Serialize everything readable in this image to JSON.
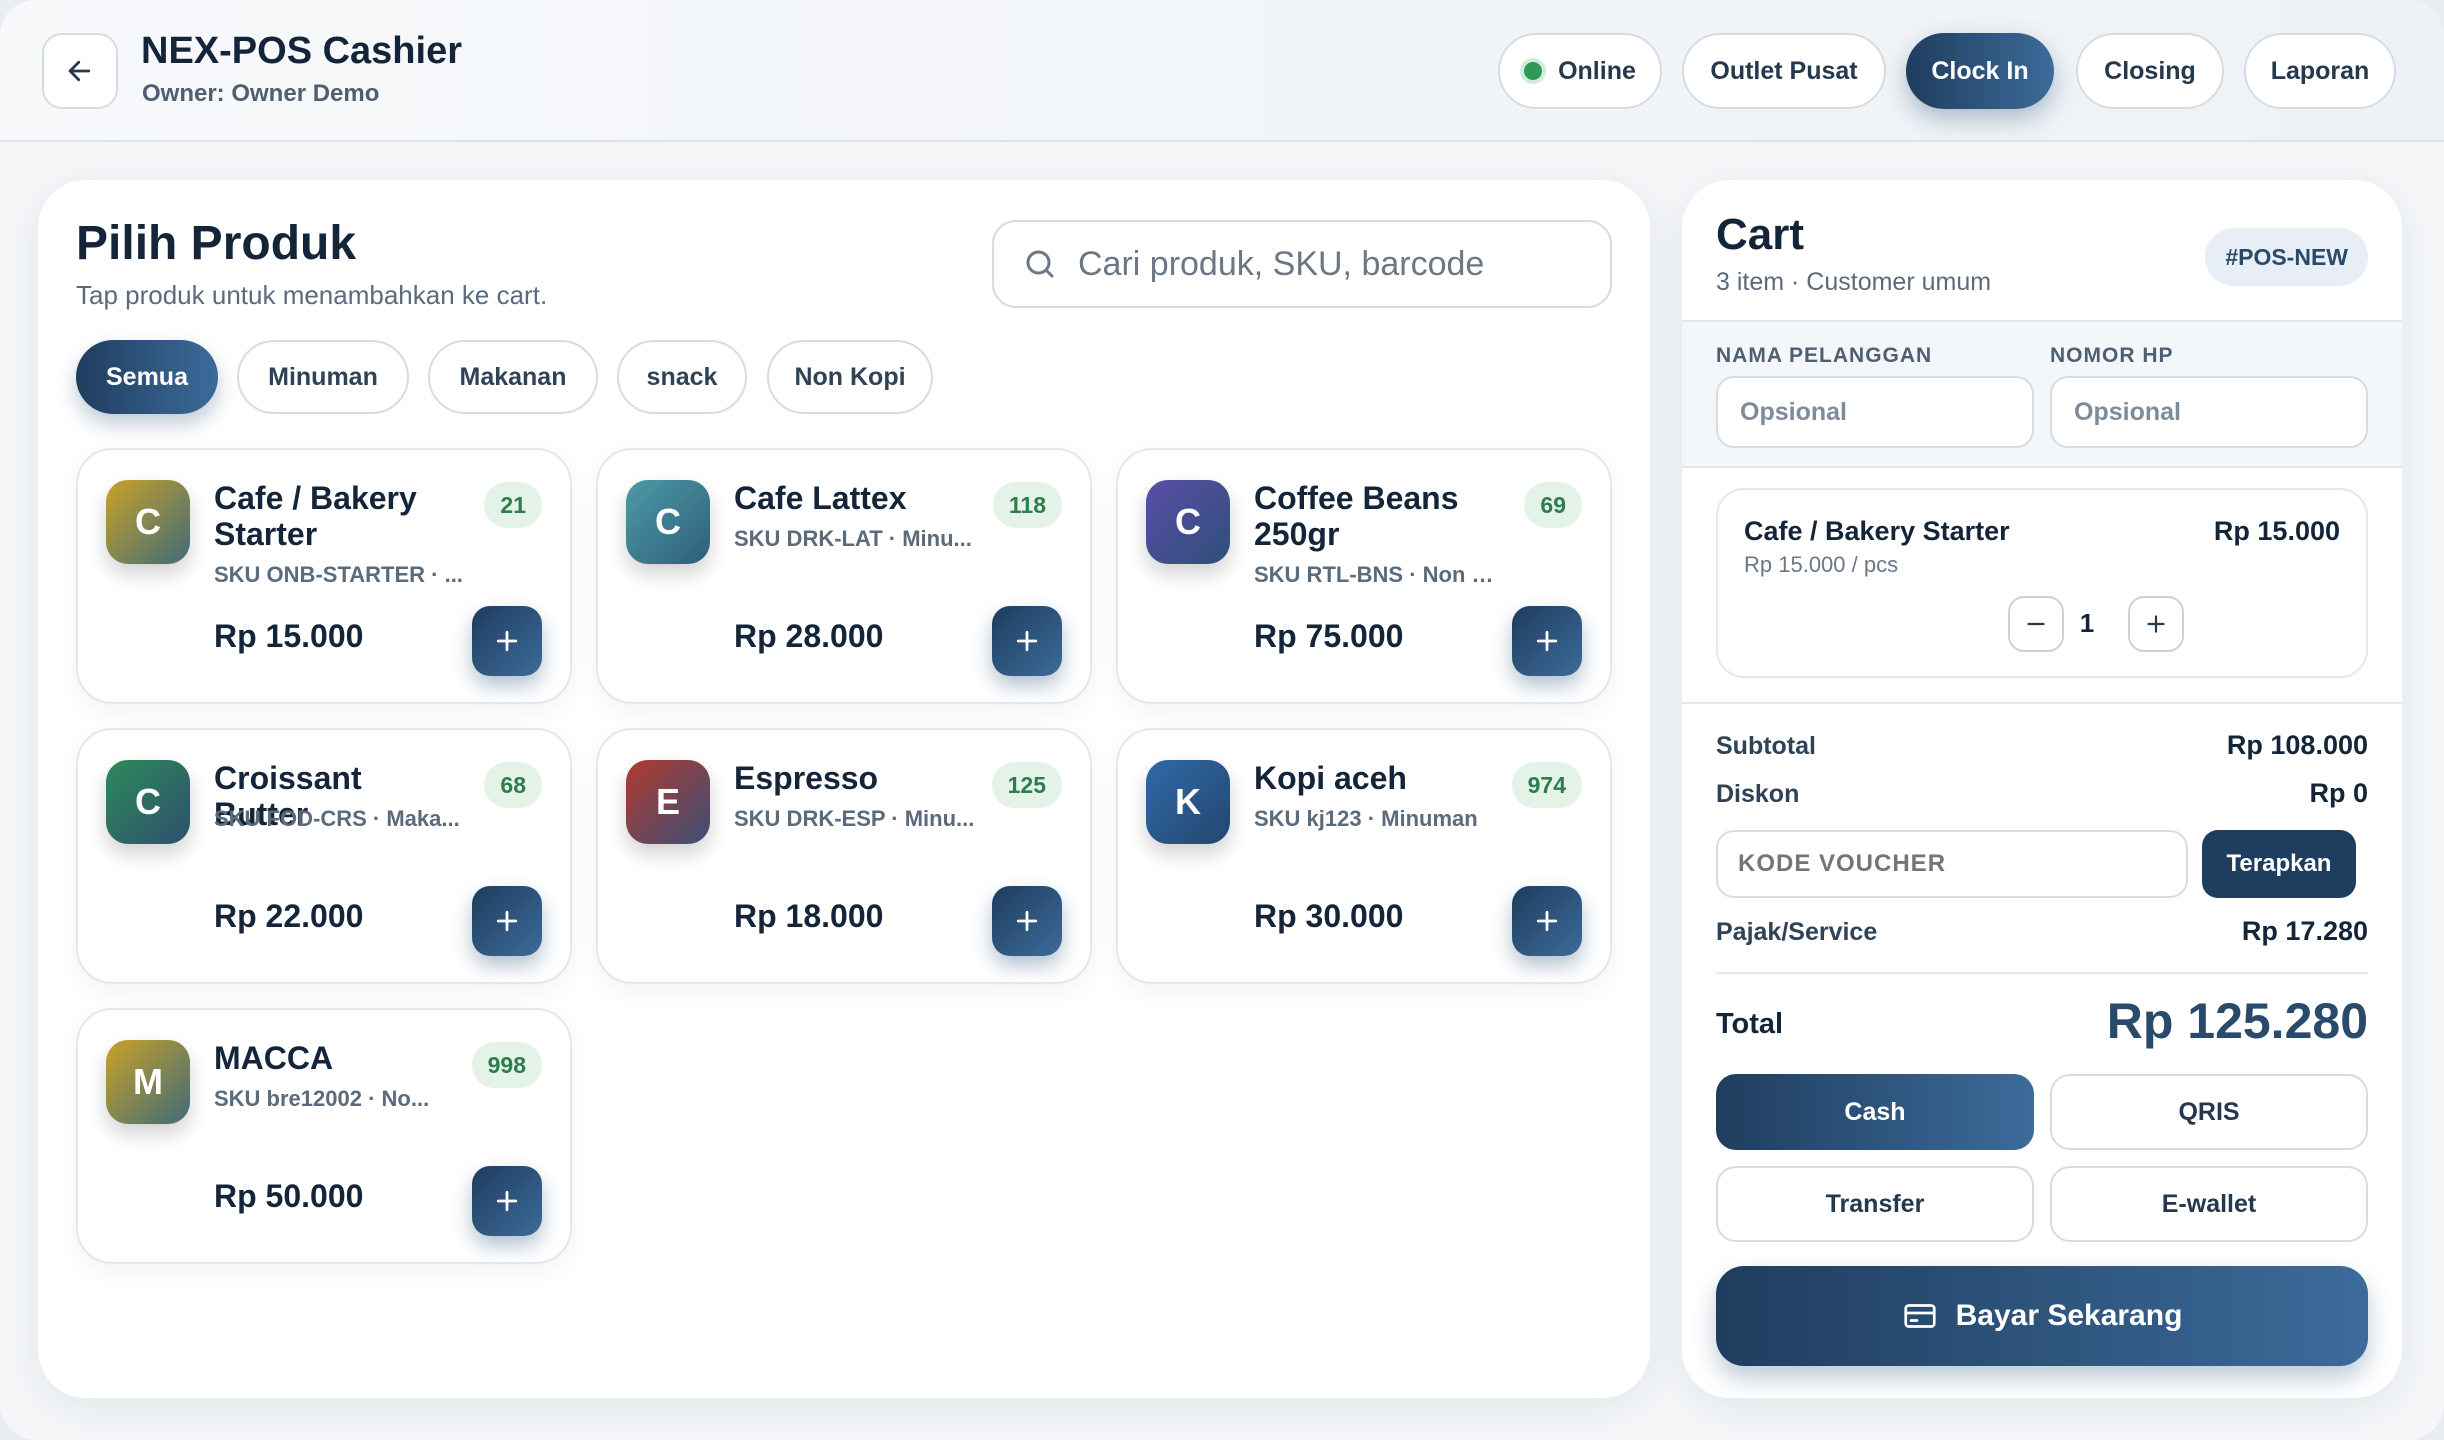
{
  "header": {
    "title": "NEX-POS Cashier",
    "owner": "Owner: Owner Demo",
    "status": "Online",
    "outlet": "Outlet Pusat",
    "clock_in": "Clock In",
    "closing": "Closing",
    "report": "Laporan"
  },
  "products_panel": {
    "title": "Pilih Produk",
    "subtitle": "Tap produk untuk menambahkan ke cart.",
    "search_placeholder": "Cari produk, SKU, barcode",
    "categories": [
      "Semua",
      "Minuman",
      "Makanan",
      "snack",
      "Non Kopi"
    ],
    "active_category": "Semua",
    "products": [
      {
        "initial": "C",
        "name": "Cafe / Bakery Starter",
        "sku": "SKU ONB-STARTER · ...",
        "stock": "21",
        "price": "Rp 15.000",
        "color_from": "#c9a227",
        "color_to": "#3f6a7a"
      },
      {
        "initial": "C",
        "name": "Cafe Lattex",
        "sku": "SKU DRK-LAT · Minu...",
        "stock": "118",
        "price": "Rp 28.000",
        "color_from": "#4e9aa8",
        "color_to": "#2d5f78"
      },
      {
        "initial": "C",
        "name": "Coffee Beans 250gr",
        "sku": "SKU RTL-BNS · Non K...",
        "stock": "69",
        "price": "Rp 75.000",
        "color_from": "#5a4ea8",
        "color_to": "#2e4f78"
      },
      {
        "initial": "C",
        "name": "Croissant Butter",
        "sku": "SKU FOD-CRS · Maka...",
        "stock": "68",
        "price": "Rp 22.000",
        "color_from": "#2f8a5a",
        "color_to": "#2d4f6e"
      },
      {
        "initial": "E",
        "name": "Espresso",
        "sku": "SKU DRK-ESP · Minu...",
        "stock": "125",
        "price": "Rp 18.000",
        "color_from": "#b23a2e",
        "color_to": "#3a4f78"
      },
      {
        "initial": "K",
        "name": "Kopi aceh",
        "sku": "SKU kj123 · Minuman",
        "stock": "974",
        "price": "Rp 30.000",
        "color_from": "#2f6aa8",
        "color_to": "#24466e"
      },
      {
        "initial": "M",
        "name": "MACCA",
        "sku": "SKU bre12002 · No...",
        "stock": "998",
        "price": "Rp 50.000",
        "color_from": "#c9a227",
        "color_to": "#3f6a7a"
      }
    ]
  },
  "cart": {
    "title": "Cart",
    "subtitle": "3 item · Customer umum",
    "order_badge": "#POS-NEW",
    "customer_label": "NAMA PELANGGAN",
    "customer_placeholder": "Opsional",
    "phone_label": "NOMOR HP",
    "phone_placeholder": "Opsional",
    "item": {
      "name": "Cafe / Bakery Starter",
      "unit_price": "Rp 15.000 / pcs",
      "total": "Rp 15.000",
      "qty": "1"
    },
    "subtotal_label": "Subtotal",
    "subtotal": "Rp 108.000",
    "discount_label": "Diskon",
    "discount": "Rp 0",
    "voucher_placeholder": "KODE VOUCHER",
    "apply_label": "Terapkan",
    "tax_label": "Pajak/Service",
    "tax": "Rp 17.280",
    "total_label": "Total",
    "total": "Rp 125.280",
    "payment_methods": [
      "Cash",
      "QRIS",
      "Transfer",
      "E-wallet"
    ],
    "active_payment": "Cash",
    "pay_label": "Bayar Sekarang"
  }
}
